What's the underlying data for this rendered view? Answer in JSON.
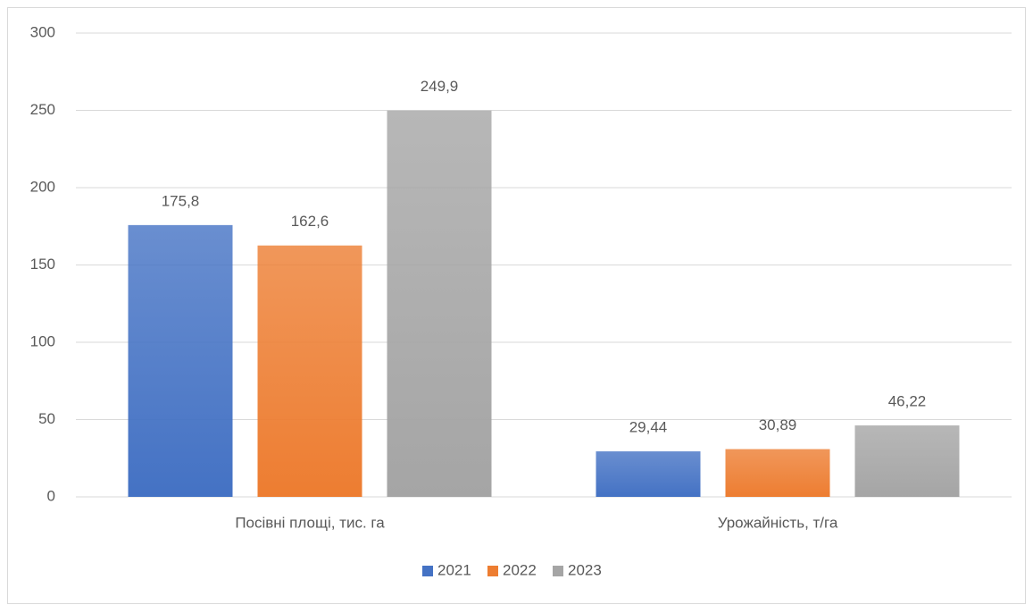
{
  "chart_data": {
    "type": "bar",
    "categories": [
      "Посівні площі, тис. га",
      "Урожайність, т/га"
    ],
    "series": [
      {
        "name": "2021",
        "color": "#4472c4",
        "values": [
          175.8,
          29.44
        ],
        "value_labels": [
          "175,8",
          "29,44"
        ]
      },
      {
        "name": "2022",
        "color": "#ed7d31",
        "values": [
          162.6,
          30.89
        ],
        "value_labels": [
          "162,6",
          "30,89"
        ]
      },
      {
        "name": "2023",
        "color": "#a5a5a5",
        "values": [
          249.9,
          46.22
        ],
        "value_labels": [
          "249,9",
          "46,22"
        ]
      }
    ],
    "ylim": [
      0,
      300
    ],
    "yticks": [
      0,
      50,
      100,
      150,
      200,
      250,
      300
    ],
    "grid": true,
    "legend": "bottom"
  }
}
